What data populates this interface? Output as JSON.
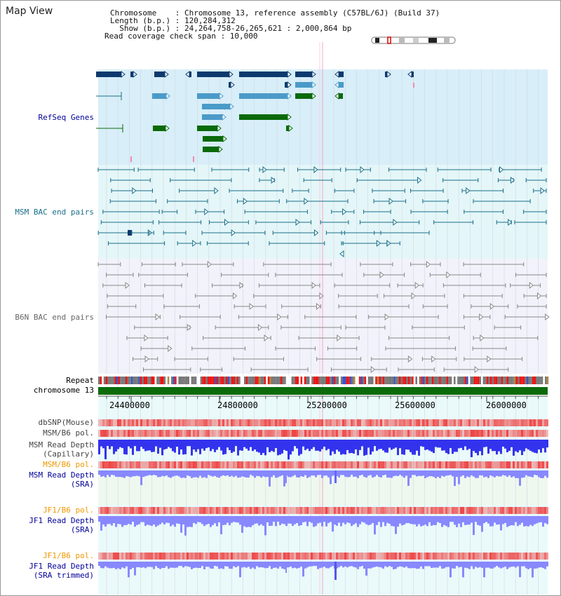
{
  "header": {
    "title": "Map View",
    "info_lines": [
      "Chromosome    : Chromosome 13, reference assembly (C57BL/6J) (Build 37)",
      "Length (b.p.) : 120,284,312",
      "  Show (b.p.) : 24,264,758-26,265,621 : 2,000,864 bp",
      "Read coverage check span : 10,000"
    ]
  },
  "tracks": {
    "refseq": "RefSeq Genes",
    "msm_bac": "MSM BAC end pairs",
    "b6n_bac": "B6N BAC end pairs",
    "repeat": "Repeat",
    "chromosome": "chromosome 13",
    "dbsnp": "dbSNP(Mouse)",
    "msm_b6_pol_1": "MSM/B6 pol.",
    "msm_depth_cap": "MSM Read Depth\n(Capillary)",
    "msm_b6_pol_2": "MSM/B6 pol.",
    "msm_depth_sra": "MSM Read Depth\n(SRA)",
    "jf1_b6_pol_1": "JF1/B6 pol.",
    "jf1_depth_sra": "JF1 Read Depth\n(SRA)",
    "jf1_b6_pol_2": "JF1/B6 pol.",
    "jf1_depth_trim": "JF1 Read Depth\n(SRA trimmed)"
  },
  "axis": {
    "ticks": [
      "24400000",
      "24800000",
      "25200000",
      "25600000",
      "26000000"
    ]
  },
  "colors": {
    "refseq_bg": "#d8eef8",
    "msm_bg": "#e4f6f8",
    "b6n_bg": "#f2f2fa",
    "gene_dark": "#0d3a6e",
    "gene_mid": "#4a9ac8",
    "gene_green": "#0a6a0a",
    "msm_pair": "#1a6f8a",
    "b6n_pair": "#888888",
    "chrom": "#0b6b0b",
    "pol_red": "#ee4444",
    "depth_blue": "#3333ee",
    "depth_light": "#8888ff",
    "orange": "#ee9900",
    "navy": "#000099"
  }
}
